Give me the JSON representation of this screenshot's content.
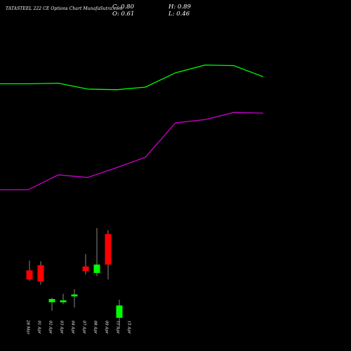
{
  "header": {
    "title": "TATASTEEL 222 CE Options Chart MunafaSutra.com",
    "close": "C: 0.80",
    "open": "O: 0.61",
    "high": "H: 0.89",
    "low": "L: 0.46"
  },
  "colors": {
    "background": "#000000",
    "up_candle": "#00ff00",
    "down_candle": "#ff0000",
    "wick": "#aaaaaa",
    "upper_band": "#00ff00",
    "lower_band": "#cc00cc",
    "text": "#ffffff"
  },
  "chart_data": {
    "type": "candlestick",
    "title": "TATASTEEL 222 CE Options Chart MunafaSutra.com",
    "categories": [
      "28 Mar",
      "01 Apr",
      "02 Apr",
      "03 Apr",
      "04 Apr",
      "07 Apr",
      "08 Apr",
      "09 Apr",
      "11 Apr",
      "15 Apr"
    ],
    "candles": [
      {
        "date": "28 Mar",
        "open": null,
        "high": null,
        "low": null,
        "close": null
      },
      {
        "date": "01 Apr",
        "open": 1.34,
        "high": 1.49,
        "low": 1.18,
        "close": 1.2,
        "direction": "down"
      },
      {
        "date": "02 Apr",
        "open": 1.42,
        "high": 1.48,
        "low": 1.12,
        "close": 1.17,
        "direction": "down"
      },
      {
        "date": "03 Apr",
        "open": 0.9,
        "high": 0.92,
        "low": 0.72,
        "close": 0.85,
        "direction": "up"
      },
      {
        "date": "04 Apr",
        "open": 0.85,
        "high": 0.98,
        "low": 0.82,
        "close": 0.88,
        "direction": "up"
      },
      {
        "date": "07 Apr",
        "open": 0.94,
        "high": 1.05,
        "low": 0.77,
        "close": 0.97,
        "direction": "up"
      },
      {
        "date": "08 Apr",
        "open": 1.33,
        "high": 1.59,
        "low": 1.28,
        "close": 1.4,
        "direction": "down"
      },
      {
        "date": "09 Apr",
        "open": 1.3,
        "high": 1.99,
        "low": 1.25,
        "close": 1.43,
        "direction": "up"
      },
      {
        "date": "11 Apr",
        "open": 1.9,
        "high": 1.96,
        "low": 1.2,
        "close": 1.43,
        "direction": "down"
      },
      {
        "date": "15 Apr",
        "open": 0.61,
        "high": 0.89,
        "low": 0.46,
        "close": 0.8,
        "direction": "up"
      }
    ],
    "series": [
      {
        "values": [
          4.21,
          4.21,
          4.22,
          4.13,
          4.12,
          4.16,
          4.38,
          4.5,
          4.49,
          4.32
        ]
      },
      {
        "values": [
          2.58,
          2.58,
          2.81,
          2.77,
          2.92,
          3.08,
          3.61,
          3.66,
          3.77,
          3.76
        ]
      }
    ],
    "ylim": [
      0.1,
      5.5
    ],
    "legend": "none",
    "grid": false
  }
}
